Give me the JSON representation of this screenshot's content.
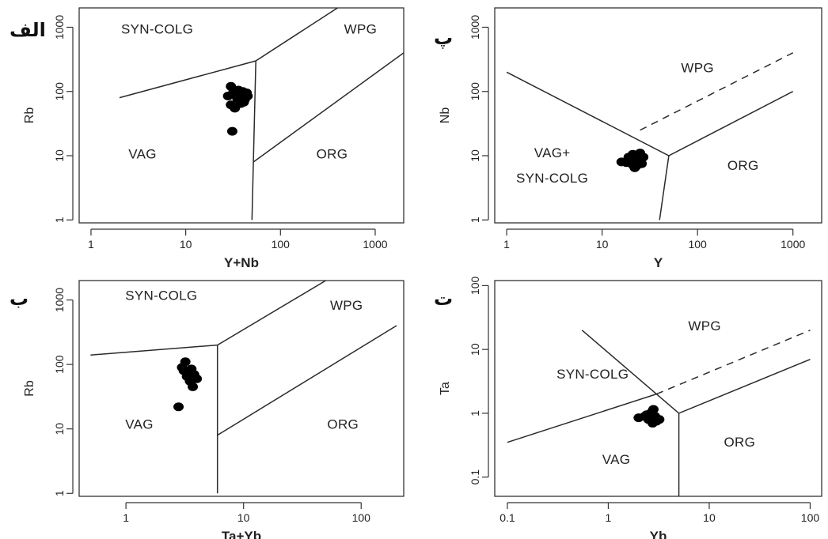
{
  "chart_data": [
    {
      "type": "scatter",
      "panel_label": "الف",
      "xlabel": "Y+Nb",
      "ylabel": "Rb",
      "xscale": "log",
      "yscale": "log",
      "xlim": [
        0.75,
        2000
      ],
      "ylim": [
        0.9,
        2000
      ],
      "x_ticks": [
        1,
        10,
        100,
        1000
      ],
      "y_ticks": [
        1,
        10,
        100,
        1000
      ],
      "x_tick_labels": [
        "1",
        "10",
        "100",
        "1000"
      ],
      "y_tick_labels": [
        "1",
        "10",
        "100",
        "1000"
      ],
      "grid": false,
      "regions": [
        {
          "text": "SYN-COLG",
          "x": 5,
          "y": 800
        },
        {
          "text": "WPG",
          "x": 700,
          "y": 800
        },
        {
          "text": "VAG",
          "x": 3.5,
          "y": 9
        },
        {
          "text": "ORG",
          "x": 350,
          "y": 9
        }
      ],
      "boundaries": [
        {
          "points": [
            [
              2,
              80
            ],
            [
              55,
              300
            ],
            [
              400,
              2000
            ]
          ],
          "dashed": false
        },
        {
          "points": [
            [
              55,
              300
            ],
            [
              50,
              1
            ]
          ],
          "dashed": false
        },
        {
          "points": [
            [
              52,
              8
            ],
            [
              2000,
              400
            ]
          ],
          "dashed": false
        }
      ],
      "points": [
        [
          31,
          24
        ],
        [
          30,
          120
        ],
        [
          32,
          100
        ],
        [
          28,
          85
        ],
        [
          33,
          90
        ],
        [
          36,
          105
        ],
        [
          38,
          90
        ],
        [
          40,
          100
        ],
        [
          42,
          75
        ],
        [
          45,
          85
        ],
        [
          35,
          78
        ],
        [
          30,
          62
        ],
        [
          33,
          55
        ],
        [
          38,
          65
        ],
        [
          44,
          95
        ],
        [
          41,
          68
        ]
      ]
    },
    {
      "type": "scatter",
      "panel_label": "پ",
      "xlabel": "Y",
      "ylabel": "Nb",
      "xscale": "log",
      "yscale": "log",
      "xlim": [
        0.75,
        2000
      ],
      "ylim": [
        0.9,
        2000
      ],
      "x_ticks": [
        1,
        10,
        100,
        1000
      ],
      "y_ticks": [
        1,
        10,
        100,
        1000
      ],
      "x_tick_labels": [
        "1",
        "10",
        "100",
        "1000"
      ],
      "y_tick_labels": [
        "1",
        "10",
        "100",
        "1000"
      ],
      "grid": false,
      "regions": [
        {
          "text": "WPG",
          "x": 100,
          "y": 200
        },
        {
          "text": "VAG+",
          "x": 3,
          "y": 9.5
        },
        {
          "text": "SYN-COLG",
          "x": 3,
          "y": 3.8
        },
        {
          "text": "ORG",
          "x": 300,
          "y": 6
        }
      ],
      "boundaries": [
        {
          "points": [
            [
              1,
              200
            ],
            [
              50,
              10
            ],
            [
              1000,
              100
            ]
          ],
          "dashed": false
        },
        {
          "points": [
            [
              50,
              10
            ],
            [
              40,
              1
            ]
          ],
          "dashed": false
        },
        {
          "points": [
            [
              25,
              25
            ],
            [
              1000,
              400
            ]
          ],
          "dashed": true
        }
      ],
      "points": [
        [
          16,
          8
        ],
        [
          18,
          7.8
        ],
        [
          20,
          9
        ],
        [
          21,
          10.5
        ],
        [
          22,
          8
        ],
        [
          23,
          7
        ],
        [
          24,
          8.8
        ],
        [
          25,
          11
        ],
        [
          26,
          7.5
        ],
        [
          22,
          6.5
        ],
        [
          19,
          9.5
        ],
        [
          27,
          9.5
        ],
        [
          24,
          10
        ],
        [
          21,
          7.2
        ]
      ]
    },
    {
      "type": "scatter",
      "panel_label": "ب",
      "xlabel": "Ta+Yb",
      "ylabel": "Rb",
      "xscale": "log",
      "yscale": "log",
      "xlim": [
        0.4,
        230
      ],
      "ylim": [
        0.9,
        2000
      ],
      "x_ticks": [
        1,
        10,
        100
      ],
      "y_ticks": [
        1,
        10,
        100,
        1000
      ],
      "x_tick_labels": [
        "1",
        "10",
        "100"
      ],
      "y_tick_labels": [
        "1",
        "10",
        "100",
        "1000"
      ],
      "grid": false,
      "regions": [
        {
          "text": "SYN-COLG",
          "x": 2,
          "y": 1000
        },
        {
          "text": "WPG",
          "x": 75,
          "y": 700
        },
        {
          "text": "VAG",
          "x": 1.3,
          "y": 10
        },
        {
          "text": "ORG",
          "x": 70,
          "y": 10
        }
      ],
      "boundaries": [
        {
          "points": [
            [
              0.5,
              140
            ],
            [
              6,
              200
            ],
            [
              50,
              2000
            ]
          ],
          "dashed": false
        },
        {
          "points": [
            [
              6,
              200
            ],
            [
              6,
              1
            ]
          ],
          "dashed": false
        },
        {
          "points": [
            [
              6,
              8
            ],
            [
              200,
              400
            ]
          ],
          "dashed": false
        }
      ],
      "points": [
        [
          2.8,
          22
        ],
        [
          3.2,
          110
        ],
        [
          3.0,
          90
        ],
        [
          3.4,
          75
        ],
        [
          3.6,
          85
        ],
        [
          3.3,
          65
        ],
        [
          3.8,
          70
        ],
        [
          4.0,
          60
        ],
        [
          3.7,
          45
        ],
        [
          3.5,
          55
        ],
        [
          3.1,
          80
        ]
      ]
    },
    {
      "type": "scatter",
      "panel_label": "ت",
      "xlabel": "Yb",
      "ylabel": "Ta",
      "xscale": "log",
      "yscale": "log",
      "xlim": [
        0.075,
        130
      ],
      "ylim": [
        0.05,
        120
      ],
      "x_ticks": [
        0.1,
        1,
        10,
        100
      ],
      "y_ticks": [
        0.1,
        1,
        10,
        100
      ],
      "x_tick_labels": [
        "0.1",
        "1",
        "10",
        "100"
      ],
      "y_tick_labels": [
        "0.1",
        "1",
        "10",
        "100"
      ],
      "grid": false,
      "regions": [
        {
          "text": "WPG",
          "x": 9,
          "y": 20
        },
        {
          "text": "SYN-COLG",
          "x": 0.7,
          "y": 3.5
        },
        {
          "text": "VAG",
          "x": 1.2,
          "y": 0.16
        },
        {
          "text": "ORG",
          "x": 20,
          "y": 0.3
        }
      ],
      "boundaries": [
        {
          "points": [
            [
              0.1,
              0.35
            ],
            [
              3,
              2
            ],
            [
              5,
              1
            ],
            [
              100,
              7
            ]
          ],
          "dashed": false
        },
        {
          "points": [
            [
              0.55,
              20
            ],
            [
              3,
              2
            ]
          ],
          "dashed": false
        },
        {
          "points": [
            [
              5,
              1
            ],
            [
              5,
              0.05
            ]
          ],
          "dashed": false
        },
        {
          "points": [
            [
              3,
              2
            ],
            [
              100,
              20
            ]
          ],
          "dashed": true
        }
      ],
      "points": [
        [
          2.0,
          0.85
        ],
        [
          2.3,
          0.9
        ],
        [
          2.5,
          0.8
        ],
        [
          2.6,
          0.85
        ],
        [
          2.7,
          1.05
        ],
        [
          2.8,
          1.15
        ],
        [
          2.9,
          0.9
        ],
        [
          3.0,
          0.75
        ],
        [
          3.2,
          0.8
        ],
        [
          2.4,
          0.95
        ],
        [
          2.75,
          0.7
        ]
      ]
    }
  ]
}
